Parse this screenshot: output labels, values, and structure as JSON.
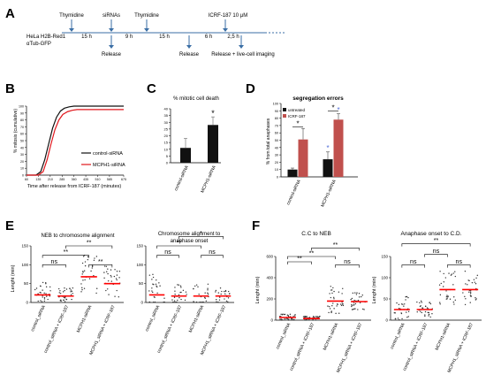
{
  "panel_letters": [
    "A",
    "B",
    "C",
    "D",
    "E",
    "F"
  ],
  "timeline": {
    "cell_line": "HeLa H2B-Red1",
    "cell_line2": "αTub-GFP",
    "top_labels": [
      "Thymidine",
      "siRNAs",
      "Thymidine",
      "ICRF-187 10 μM"
    ],
    "durations": [
      "15 h",
      "9 h",
      "15 h",
      "6 h",
      "2,5 h"
    ],
    "bottom_labels": [
      "Release",
      "Release",
      "Release + live-cell imaging"
    ]
  },
  "colors": {
    "black": "#111111",
    "red": "#e0161c",
    "bar_black": "#111111",
    "bar_red": "#c0504d",
    "sig_blue": "#4f6bd8",
    "median": "#ff0000"
  },
  "chart_data": [
    {
      "panel": "B",
      "type": "line",
      "ylabel": "% mitosis (cumulative)",
      "xlabel": "Time after release from ICRF-187 (minutes)",
      "xlim": [
        60,
        675
      ],
      "ylim": [
        0,
        100
      ],
      "x_ticks": [
        60,
        135,
        210,
        285,
        360,
        435,
        510,
        585,
        675
      ],
      "y_ticks": [
        0,
        10,
        20,
        30,
        40,
        50,
        60,
        70,
        80,
        90,
        100
      ],
      "legend": "right",
      "series": [
        {
          "name": "control-siRNA",
          "color": "#111111",
          "x": [
            60,
            120,
            150,
            175,
            200,
            225,
            250,
            275,
            300,
            330,
            360,
            675
          ],
          "y": [
            0,
            0,
            5,
            22,
            45,
            68,
            84,
            93,
            97,
            99,
            100,
            100
          ]
        },
        {
          "name": "MCPH1-siRNA",
          "color": "#e0161c",
          "x": [
            60,
            135,
            165,
            190,
            215,
            240,
            265,
            290,
            320,
            350,
            380,
            675
          ],
          "y": [
            0,
            0,
            5,
            22,
            45,
            66,
            80,
            88,
            92,
            94,
            95,
            95
          ]
        }
      ]
    },
    {
      "panel": "C",
      "type": "bar",
      "title": "% mitotic cell death",
      "categories": [
        "control-siRNA",
        "MCPH1-siRNA"
      ],
      "values": [
        11,
        28
      ],
      "errors": [
        7,
        6
      ],
      "ylim": [
        0,
        40
      ],
      "y_ticks": [
        0,
        5,
        10,
        15,
        20,
        25,
        30,
        35,
        40
      ],
      "annotations": [
        "*"
      ]
    },
    {
      "panel": "D",
      "type": "bar",
      "title": "segregation errors",
      "ylabel": "% from total anaphases",
      "categories": [
        "control-siRNA",
        "MCPH1-siRNA"
      ],
      "series": [
        {
          "name": "untreated",
          "color": "#111111",
          "values": [
            10,
            24
          ],
          "errors": [
            2,
            10
          ]
        },
        {
          "name": "ICRF-187",
          "color": "#c0504d",
          "values": [
            51,
            78
          ],
          "errors": [
            15,
            8
          ]
        }
      ],
      "ylim": [
        0,
        100
      ],
      "y_ticks": [
        0,
        10,
        20,
        30,
        40,
        50,
        60,
        70,
        80,
        90,
        100
      ],
      "legend": "top-left",
      "annotations": [
        "*",
        "*"
      ]
    },
    {
      "panel": "E-left",
      "type": "scatter",
      "title": "NEB to chromosome alignment",
      "ylabel": "Lenght (min)",
      "categories": [
        "control_siRNA",
        "control_siRNA + ICRF-187",
        "MCPH1-siRNA",
        "MCPH1_siRNA + ICRF-187"
      ],
      "medians": [
        20,
        17,
        68,
        50
      ],
      "ylim": [
        0,
        150
      ],
      "y_ticks": [
        0,
        50,
        100,
        150
      ],
      "significance": [
        "ns",
        "**",
        "**",
        "**"
      ]
    },
    {
      "panel": "E-right",
      "type": "scatter",
      "title": "Chromosome alignment to",
      "title2": "anaphase onset",
      "categories": [
        "control_siRNA",
        "control_siRNA + ICRF-187",
        "MCPH1-siRNA",
        "MCPH1_siRNA + ICRF-187"
      ],
      "medians": [
        20,
        17,
        17,
        17
      ],
      "ylim": [
        0,
        150
      ],
      "y_ticks": [
        0,
        50,
        100,
        150
      ],
      "significance": [
        "ns",
        "ns",
        "**",
        "*"
      ]
    },
    {
      "panel": "F-left",
      "type": "scatter",
      "title": "C.C to NEB",
      "ylabel": "Lenght (min)",
      "categories": [
        "control_siRNA",
        "control_siRNA + ICRF-187",
        "MCPH1-siRNA",
        "MCPH1_siRNA + ICRF-187"
      ],
      "medians": [
        25,
        15,
        180,
        175
      ],
      "ylim": [
        0,
        600
      ],
      "y_ticks": [
        0,
        200,
        400,
        600
      ],
      "significance": [
        "**",
        "**",
        "ns",
        "**"
      ]
    },
    {
      "panel": "F-right",
      "type": "scatter",
      "title": "Anaphase onset to C.D.",
      "ylabel": "Lenght (min)",
      "categories": [
        "control_siRNA",
        "control_siRNA + ICRF-187",
        "MCPH1-siRNA",
        "MCPH1_siRNA + ICRF-187"
      ],
      "medians": [
        25,
        25,
        72,
        72
      ],
      "ylim": [
        0,
        150
      ],
      "y_ticks": [
        0,
        50,
        100,
        150
      ],
      "significance": [
        "ns",
        "ns",
        "ns",
        "**"
      ]
    }
  ]
}
